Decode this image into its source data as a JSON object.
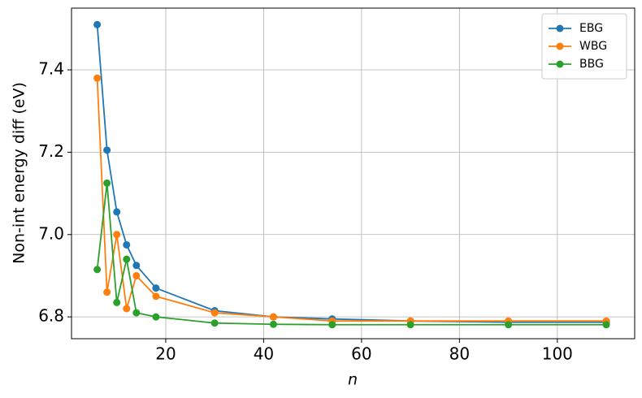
{
  "chart_data": {
    "type": "line",
    "x_label": "n",
    "y_label": "Non-int energy diff (eV)",
    "x": [
      6,
      8,
      10,
      12,
      14,
      18,
      30,
      42,
      54,
      70,
      90,
      110
    ],
    "series": [
      {
        "name": "EBG",
        "color": "#1f77b4",
        "values": [
          7.51,
          7.205,
          7.055,
          6.975,
          6.925,
          6.87,
          6.815,
          6.8,
          6.795,
          6.79,
          6.787,
          6.787
        ]
      },
      {
        "name": "WBG",
        "color": "#ff7f0e",
        "values": [
          7.38,
          6.86,
          7.0,
          6.82,
          6.9,
          6.85,
          6.81,
          6.8,
          6.79,
          6.79,
          6.79,
          6.79
        ]
      },
      {
        "name": "BBG",
        "color": "#2ca02c",
        "values": [
          6.915,
          7.125,
          6.835,
          6.94,
          6.81,
          6.8,
          6.785,
          6.782,
          6.781,
          6.781,
          6.781,
          6.781
        ]
      }
    ],
    "xlim": [
      0.75,
      115.8
    ],
    "xticks": [
      20,
      40,
      60,
      80,
      100
    ],
    "ylim": [
      6.747,
      7.55
    ],
    "yticks": [
      6.8,
      {
        "value": 7,
        "label": "7.0"
      },
      7.2,
      7.4
    ],
    "grid": true,
    "legend": "upper right"
  }
}
